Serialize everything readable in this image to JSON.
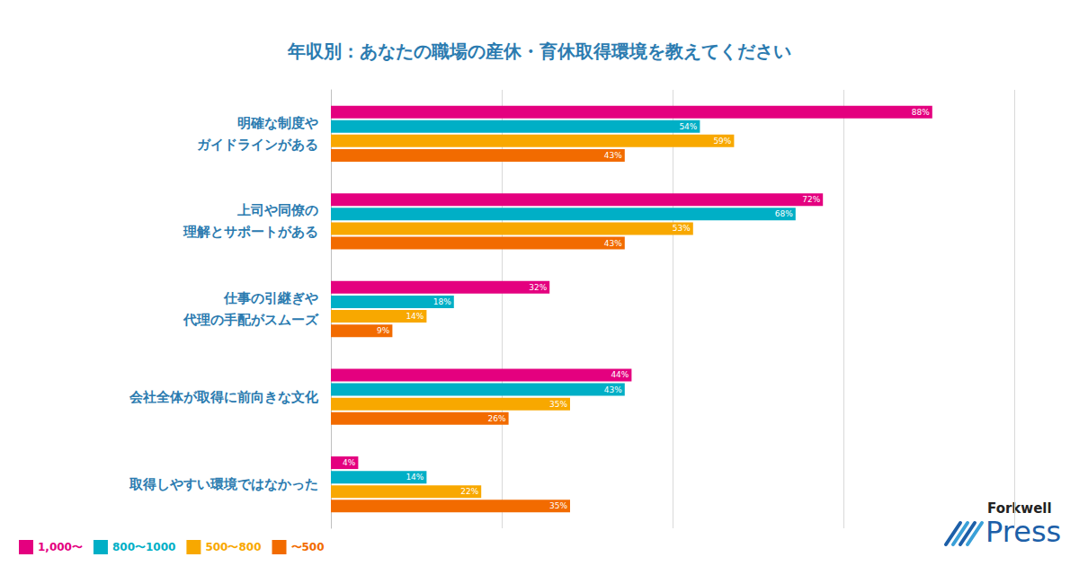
{
  "chart_data": {
    "type": "bar",
    "orientation": "horizontal",
    "title": "年収別：あなたの職場の産休・育休取得環境を教えてください",
    "categories": [
      "明確な制度や\nガイドラインがある",
      "上司や同僚の\n理解とサポートがある",
      "仕事の引継ぎや\n代理の手配がスムーズ",
      "会社全体が取得に前向きな文化",
      "取得しやすい環境ではなかった"
    ],
    "series": [
      {
        "name": "1,000〜",
        "color": "#e4007f",
        "values": [
          88,
          72,
          32,
          44,
          4
        ],
        "value_labels": [
          "88%",
          "72%",
          "32%",
          "44%",
          "4%"
        ]
      },
      {
        "name": "800〜1000",
        "color": "#00afc6",
        "values": [
          54,
          68,
          18,
          43,
          14
        ],
        "value_labels": [
          "54%",
          "68%",
          "18%",
          "43%",
          "14%"
        ]
      },
      {
        "name": "500〜800",
        "color": "#f8a800",
        "values": [
          59,
          53,
          14,
          35,
          22
        ],
        "value_labels": [
          "59%",
          "53%",
          "14%",
          "35%",
          "22%"
        ]
      },
      {
        "name": "〜500",
        "color": "#f26b00",
        "values": [
          43,
          43,
          9,
          26,
          35
        ],
        "value_labels": [
          "43%",
          "43%",
          "9%",
          "26%",
          "35%"
        ]
      }
    ],
    "xlim": [
      0,
      100
    ],
    "xticks": [
      0,
      25,
      50,
      75,
      100
    ],
    "grid": true,
    "tick_labels": "y",
    "data_labels": true,
    "legend": "bottom-left",
    "annotations": [
      "Forkwell",
      "Press"
    ]
  }
}
